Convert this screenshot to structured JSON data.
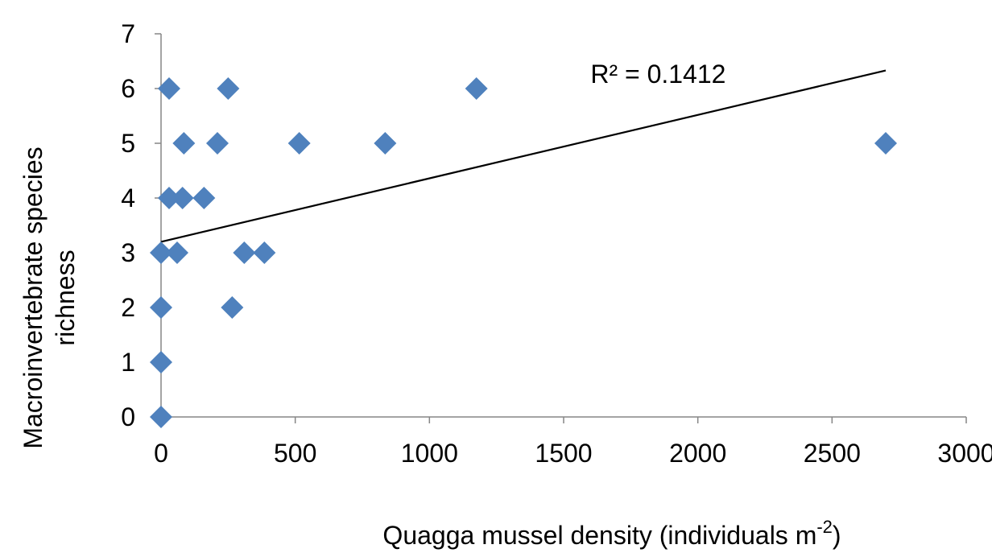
{
  "chart_data": {
    "type": "scatter",
    "xlabel": "Quagga mussel density (individuals m",
    "xlabel_superscript": "-2",
    "xlabel_suffix": ")",
    "ylabel_line1": "Macroinvertebrate species",
    "ylabel_line2": "richness",
    "xlim": [
      0,
      3000
    ],
    "ylim": [
      0,
      7
    ],
    "x_ticks": [
      0,
      500,
      1000,
      1500,
      2000,
      2500,
      3000
    ],
    "y_ticks": [
      0,
      1,
      2,
      3,
      4,
      5,
      6,
      7
    ],
    "x_tick_labels": [
      "0",
      "500",
      "1000",
      "1500",
      "2000",
      "2500",
      "3000"
    ],
    "y_tick_labels": [
      "0",
      "1",
      "2",
      "3",
      "4",
      "5",
      "6",
      "7"
    ],
    "marker": "diamond",
    "marker_color": "#4F81BD",
    "points": [
      {
        "x": 0,
        "y": 0
      },
      {
        "x": 0,
        "y": 1
      },
      {
        "x": 0,
        "y": 2
      },
      {
        "x": 0,
        "y": 3
      },
      {
        "x": 30,
        "y": 6
      },
      {
        "x": 30,
        "y": 4
      },
      {
        "x": 60,
        "y": 3
      },
      {
        "x": 80,
        "y": 4
      },
      {
        "x": 85,
        "y": 5
      },
      {
        "x": 160,
        "y": 4
      },
      {
        "x": 210,
        "y": 5
      },
      {
        "x": 250,
        "y": 6
      },
      {
        "x": 265,
        "y": 2
      },
      {
        "x": 310,
        "y": 3
      },
      {
        "x": 385,
        "y": 3
      },
      {
        "x": 515,
        "y": 5
      },
      {
        "x": 835,
        "y": 5
      },
      {
        "x": 1175,
        "y": 6
      },
      {
        "x": 2700,
        "y": 5
      }
    ],
    "trendline": {
      "x": [
        0,
        2700
      ],
      "y": [
        3.2,
        6.33
      ],
      "color": "#000000"
    },
    "annotation": {
      "text": "R² = 0.1412",
      "x": 1600,
      "y": 6.1
    }
  }
}
